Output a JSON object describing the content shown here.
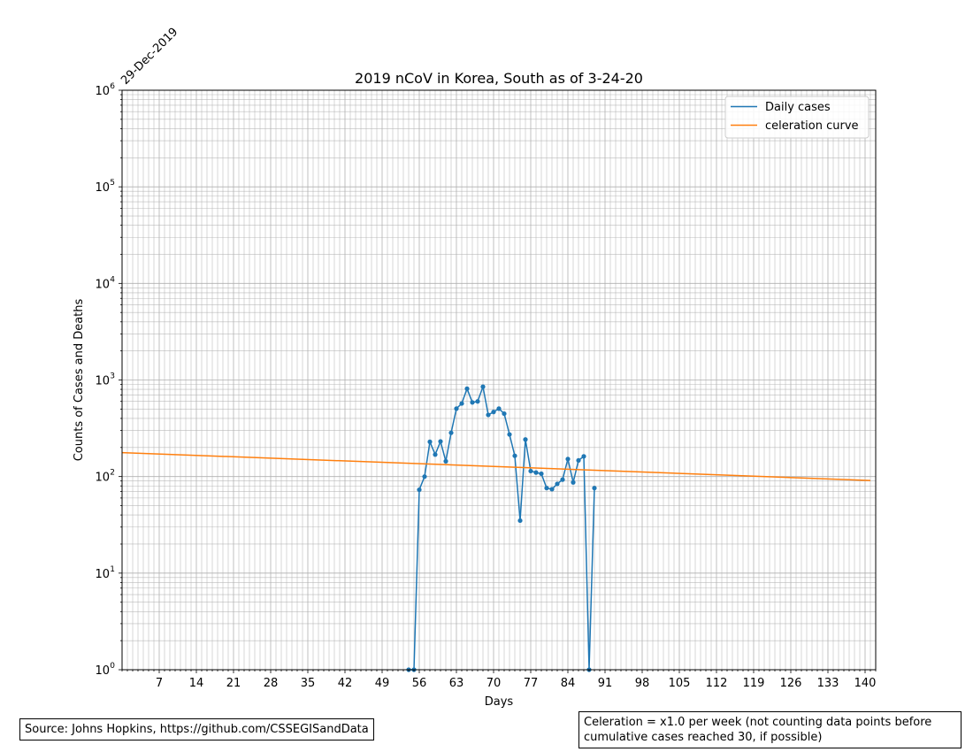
{
  "chart_data": {
    "type": "line",
    "title": "2019 nCoV in Korea, South as of 3-24-20",
    "xlabel": "Days",
    "ylabel": "Counts of Cases and Deaths",
    "start_date_label": "29-Dec-2019",
    "x_ticks": [
      7,
      14,
      21,
      28,
      35,
      42,
      49,
      56,
      63,
      70,
      77,
      84,
      91,
      98,
      105,
      112,
      119,
      126,
      133,
      140
    ],
    "xlim": [
      0,
      142
    ],
    "ylim": [
      1,
      1000000
    ],
    "y_scale": "log",
    "y_ticks": [
      {
        "base": "10",
        "exp": "0"
      },
      {
        "base": "10",
        "exp": "1"
      },
      {
        "base": "10",
        "exp": "2"
      },
      {
        "base": "10",
        "exp": "3"
      },
      {
        "base": "10",
        "exp": "4"
      },
      {
        "base": "10",
        "exp": "5"
      },
      {
        "base": "10",
        "exp": "6"
      }
    ],
    "grid": true,
    "legend_position": "top-right",
    "series": [
      {
        "name": "Daily cases",
        "color": "#1f77b4",
        "marker": "circle",
        "x": [
          54,
          55,
          56,
          57,
          58,
          59,
          60,
          61,
          62,
          63,
          64,
          65,
          66,
          67,
          68,
          69,
          70,
          71,
          72,
          73,
          74,
          75,
          76,
          77,
          78,
          79,
          80,
          81,
          82,
          83,
          84,
          85,
          86,
          87,
          88,
          89
        ],
        "y": [
          1,
          1,
          73,
          100,
          229,
          169,
          231,
          144,
          284,
          505,
          571,
          813,
          586,
          600,
          851,
          435,
          467,
          505,
          448,
          273,
          164,
          35,
          242,
          114,
          110,
          107,
          76,
          74,
          84,
          93,
          152,
          87,
          147,
          162,
          1,
          76
        ]
      },
      {
        "name": "celeration curve",
        "color": "#ff7f0e",
        "marker": "none",
        "x": [
          0,
          141
        ],
        "y": [
          177,
          91
        ]
      }
    ]
  },
  "footer": {
    "source": "Source: Johns Hopkins, https://github.com/CSSEGISandData",
    "celeration_note": "Celeration = x1.0 per week (not counting data points before cumulative cases reached 30, if possible)"
  }
}
